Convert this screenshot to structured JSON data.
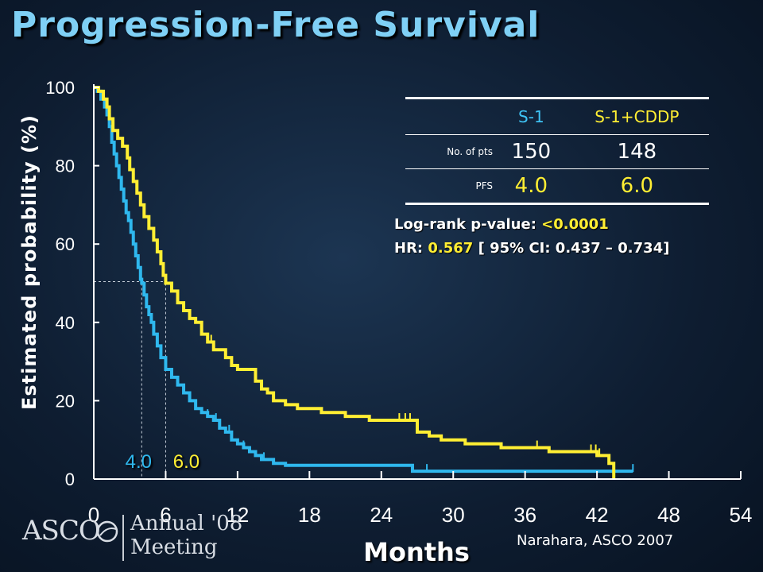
{
  "title": "Progression-Free Survival",
  "table": {
    "arm1": "S-1",
    "arm2": "S-1+CDDP",
    "row_pts_label": "No. of pts",
    "pts_arm1": "150",
    "pts_arm2": "148",
    "row_pfs_label": "PFS",
    "pfs_arm1": "4.0",
    "pfs_arm2": "6.0"
  },
  "stats": {
    "logrank_label": "Log-rank p-value: ",
    "logrank_value": "<0.0001",
    "hr_label": "HR: ",
    "hr_value": "0.567",
    "ci_text": " [ 95% CI: 0.437 – 0.734]"
  },
  "citation": "Narahara, ASCO 2007",
  "logo": {
    "brand": "ASCO",
    "line1": "Annual '08",
    "line2": "Meeting"
  },
  "colors": {
    "title": "#7fd0f5",
    "s1": "#2fb8ee",
    "s1cddp": "#ffee33"
  },
  "chart_data": {
    "type": "line",
    "xlabel": "Months",
    "ylabel": "Estimated probability (%)",
    "xlim": [
      0,
      54
    ],
    "ylim": [
      0,
      100
    ],
    "xticks": [
      0,
      6,
      12,
      18,
      24,
      30,
      36,
      42,
      48,
      54
    ],
    "yticks": [
      0,
      20,
      40,
      60,
      80,
      100
    ],
    "median_labels": [
      {
        "series": "S-1",
        "x": 4.0,
        "label": "4.0"
      },
      {
        "series": "S-1+CDDP",
        "x": 6.0,
        "label": "6.0"
      }
    ],
    "series": [
      {
        "name": "S-1",
        "color": "#2fb8ee",
        "points": [
          [
            0,
            100
          ],
          [
            0.3,
            99
          ],
          [
            0.6,
            97
          ],
          [
            0.9,
            95
          ],
          [
            1.1,
            93
          ],
          [
            1.3,
            90
          ],
          [
            1.5,
            86
          ],
          [
            1.7,
            83
          ],
          [
            1.9,
            80
          ],
          [
            2.1,
            77
          ],
          [
            2.3,
            74
          ],
          [
            2.5,
            71
          ],
          [
            2.7,
            68
          ],
          [
            2.9,
            66
          ],
          [
            3.1,
            63
          ],
          [
            3.3,
            60
          ],
          [
            3.5,
            57
          ],
          [
            3.7,
            54
          ],
          [
            3.9,
            51
          ],
          [
            4.0,
            50
          ],
          [
            4.2,
            47
          ],
          [
            4.4,
            44
          ],
          [
            4.6,
            42
          ],
          [
            4.8,
            40
          ],
          [
            5.0,
            37
          ],
          [
            5.3,
            34
          ],
          [
            5.6,
            31
          ],
          [
            6.0,
            28
          ],
          [
            6.5,
            26
          ],
          [
            7.0,
            24
          ],
          [
            7.5,
            22
          ],
          [
            8.0,
            20
          ],
          [
            8.5,
            18
          ],
          [
            9.0,
            17
          ],
          [
            9.5,
            16
          ],
          [
            10,
            15
          ],
          [
            10.5,
            13
          ],
          [
            11,
            12
          ],
          [
            11.5,
            10
          ],
          [
            12,
            9
          ],
          [
            12.5,
            8
          ],
          [
            13,
            7
          ],
          [
            13.5,
            6
          ],
          [
            14,
            5
          ],
          [
            15,
            4
          ],
          [
            16,
            3.5
          ],
          [
            20,
            3.5
          ],
          [
            26.5,
            3.5
          ],
          [
            26.6,
            2
          ],
          [
            32,
            2
          ],
          [
            36,
            2
          ],
          [
            40,
            2
          ],
          [
            45,
            2
          ]
        ],
        "censor_x": [
          9.5,
          10.2,
          11.3,
          12.5,
          14.2,
          27.8,
          45.0
        ]
      },
      {
        "name": "S-1+CDDP",
        "color": "#ffee33",
        "points": [
          [
            0,
            100
          ],
          [
            0.4,
            99
          ],
          [
            0.8,
            97
          ],
          [
            1.1,
            95
          ],
          [
            1.3,
            92
          ],
          [
            1.6,
            89
          ],
          [
            2.0,
            87
          ],
          [
            2.4,
            85
          ],
          [
            2.8,
            82
          ],
          [
            3.0,
            79
          ],
          [
            3.3,
            76
          ],
          [
            3.6,
            73
          ],
          [
            3.9,
            70
          ],
          [
            4.2,
            67
          ],
          [
            4.6,
            64
          ],
          [
            5.0,
            61
          ],
          [
            5.3,
            58
          ],
          [
            5.6,
            55
          ],
          [
            5.8,
            52
          ],
          [
            6.0,
            50
          ],
          [
            6.5,
            48
          ],
          [
            7.0,
            45
          ],
          [
            7.5,
            43
          ],
          [
            8.0,
            41
          ],
          [
            8.5,
            40
          ],
          [
            9.0,
            37
          ],
          [
            9.5,
            35
          ],
          [
            10,
            33
          ],
          [
            11,
            31
          ],
          [
            11.5,
            29
          ],
          [
            12,
            28
          ],
          [
            13,
            28
          ],
          [
            13.5,
            25
          ],
          [
            14,
            23
          ],
          [
            14.5,
            22
          ],
          [
            15,
            20
          ],
          [
            16,
            19
          ],
          [
            17,
            18
          ],
          [
            19,
            17
          ],
          [
            21,
            16
          ],
          [
            23,
            15
          ],
          [
            25,
            15
          ],
          [
            26.5,
            15
          ],
          [
            27,
            12
          ],
          [
            28,
            11
          ],
          [
            29,
            10
          ],
          [
            31,
            9
          ],
          [
            34,
            8
          ],
          [
            36,
            8
          ],
          [
            38,
            7
          ],
          [
            41,
            7
          ],
          [
            42,
            6
          ],
          [
            43,
            4
          ],
          [
            43.3,
            4
          ],
          [
            43.4,
            0
          ]
        ],
        "censor_x": [
          9.8,
          11.5,
          25.5,
          26.0,
          26.4,
          37.0,
          41.5,
          41.9,
          42.2
        ]
      }
    ]
  }
}
